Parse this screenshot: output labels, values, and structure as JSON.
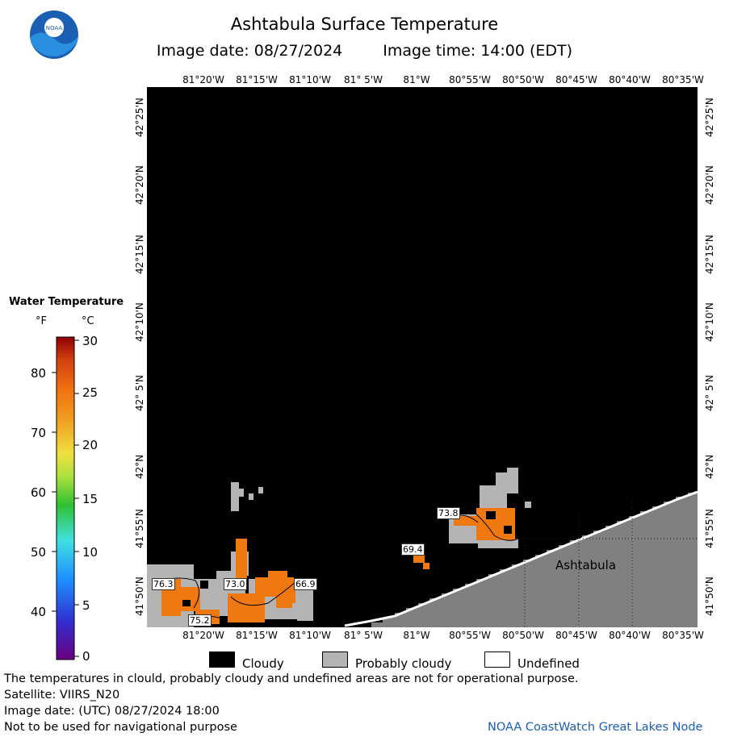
{
  "header": {
    "title": "Ashtabula Surface Temperature",
    "image_date": "Image date: 08/27/2024",
    "image_time": "Image time: 14:00 (EDT)"
  },
  "logo": {
    "text": "NOAA"
  },
  "longitude_ticks": [
    "81°20'W",
    "81°15'W",
    "81°10'W",
    "81° 5'W",
    "81°W",
    "80°55'W",
    "80°50'W",
    "80°45'W",
    "80°40'W",
    "80°35'W"
  ],
  "latitude_ticks": [
    "42°25'N",
    "42°20'N",
    "42°15'N",
    "42°10'N",
    "42° 5'N",
    "42°N",
    "41°55'N",
    "41°50'N"
  ],
  "legend": {
    "title": "Water Temperature",
    "unit_f": "°F",
    "unit_c": "°C",
    "fahrenheit_ticks": [
      "80",
      "70",
      "60",
      "50",
      "40"
    ],
    "celsius_ticks": [
      "30",
      "25",
      "20",
      "15",
      "10",
      "5",
      "0"
    ],
    "colors": [
      "#6a0080",
      "#3030d0",
      "#1e90ff",
      "#40e0e0",
      "#30c030",
      "#b0e040",
      "#f0e040",
      "#f0a020",
      "#f07010",
      "#d04010",
      "#900000"
    ]
  },
  "map": {
    "place_label": "Ashtabula",
    "temperature_labels": [
      "76.3",
      "73.0",
      "66.9",
      "75.2",
      "69.4",
      "73.8"
    ],
    "colors": {
      "cloudy": "#000000",
      "probably_cloudy": "#b4b4b4",
      "land": "#808080",
      "warm": "#f07810"
    }
  },
  "key": {
    "cloudy": "Cloudy",
    "probably_cloudy": "Probably cloudy",
    "undefined": "Undefined"
  },
  "footer": {
    "disclaimer": "The temperatures in clould, probably cloudy and undefined areas are not for operational purpose.",
    "satellite": "Satellite: VIIRS_N20",
    "utc_date": "Image date: (UTC) 08/27/2024  18:00",
    "nav_warning": "Not to be used for navigational purpose",
    "credit": "NOAA CoastWatch Great Lakes Node"
  }
}
